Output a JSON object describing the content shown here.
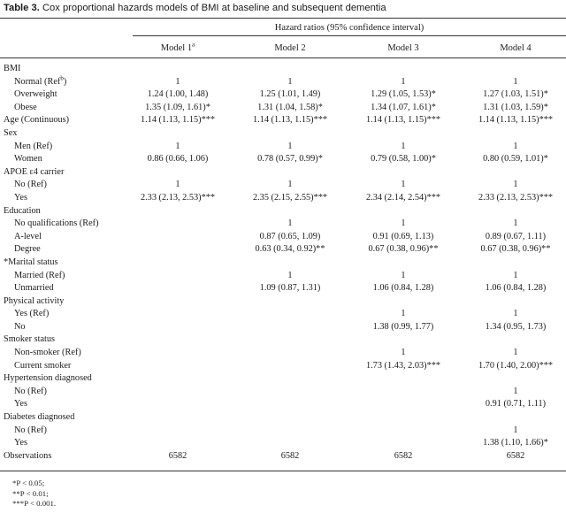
{
  "caption": {
    "number": "Table 3.",
    "text": "Cox proportional hazards models of BMI at baseline and subsequent dementia"
  },
  "group_header": "Hazard ratios (95% confidence interval)",
  "models": [
    {
      "label": "Model 1",
      "sup": "a"
    },
    {
      "label": "Model 2",
      "sup": ""
    },
    {
      "label": "Model 3",
      "sup": ""
    },
    {
      "label": "Model 4",
      "sup": ""
    }
  ],
  "rows": [
    {
      "label": "BMI",
      "sub": false,
      "cells": [
        "",
        "",
        "",
        ""
      ]
    },
    {
      "label": "Normal (Ref",
      "label_sup": "b",
      "label_tail": ")",
      "sub": true,
      "cells": [
        "1",
        "1",
        "1",
        "1"
      ]
    },
    {
      "label": "Overweight",
      "sub": true,
      "cells": [
        "1.24 (1.00, 1.48)",
        "1.25 (1.01, 1.49)",
        "1.29 (1.05, 1.53)*",
        "1.27 (1.03, 1.51)*"
      ]
    },
    {
      "label": "Obese",
      "sub": true,
      "cells": [
        "1.35 (1.09, 1.61)*",
        "1.31 (1.04, 1.58)*",
        "1.34 (1.07, 1.61)*",
        "1.31 (1.03, 1.59)*"
      ]
    },
    {
      "label": "Age (Continuous)",
      "sub": false,
      "cells": [
        "1.14 (1.13, 1.15)***",
        "1.14 (1.13, 1.15)***",
        "1.14 (1.13, 1.15)***",
        "1.14 (1.13, 1.15)***"
      ]
    },
    {
      "label": "Sex",
      "sub": false,
      "cells": [
        "",
        "",
        "",
        ""
      ]
    },
    {
      "label": "Men (Ref)",
      "sub": true,
      "cells": [
        "1",
        "1",
        "1",
        "1"
      ]
    },
    {
      "label": "Women",
      "sub": true,
      "cells": [
        "0.86 (0.66, 1.06)",
        "0.78 (0.57, 0.99)*",
        "0.79 (0.58, 1.00)*",
        "0.80 (0.59, 1.01)*"
      ]
    },
    {
      "label": "APOE ε4 carrier",
      "sub": false,
      "cells": [
        "",
        "",
        "",
        ""
      ]
    },
    {
      "label": "No (Ref)",
      "sub": true,
      "cells": [
        "1",
        "1",
        "1",
        "1"
      ]
    },
    {
      "label": "Yes",
      "sub": true,
      "cells": [
        "2.33 (2.13, 2.53)***",
        "2.35 (2.15, 2.55)***",
        "2.34 (2.14, 2.54)***",
        "2.33 (2.13, 2.53)***"
      ]
    },
    {
      "label": "Education",
      "sub": false,
      "cells": [
        "",
        "",
        "",
        ""
      ]
    },
    {
      "label": "No qualifications (Ref)",
      "sub": true,
      "cells": [
        "",
        "1",
        "1",
        "1"
      ]
    },
    {
      "label": "A-level",
      "sub": true,
      "cells": [
        "",
        "0.87 (0.65, 1.09)",
        "0.91 (0.69, 1.13)",
        "0.89 (0.67, 1.11)"
      ]
    },
    {
      "label": "Degree",
      "sub": true,
      "cells": [
        "",
        "0.63 (0.34, 0.92)**",
        "0.67 (0.38, 0.96)**",
        "0.67 (0.38, 0.96)**"
      ]
    },
    {
      "label": "*Marital status",
      "sub": false,
      "cells": [
        "",
        "",
        "",
        ""
      ]
    },
    {
      "label": "Married (Ref)",
      "sub": true,
      "cells": [
        "",
        "1",
        "1",
        "1"
      ]
    },
    {
      "label": "Unmarried",
      "sub": true,
      "cells": [
        "",
        "1.09 (0.87, 1.31)",
        "1.06 (0.84, 1.28)",
        "1.06 (0.84, 1.28)"
      ]
    },
    {
      "label": "Physical activity",
      "sub": false,
      "cells": [
        "",
        "",
        "",
        ""
      ]
    },
    {
      "label": "Yes (Ref)",
      "sub": true,
      "cells": [
        "",
        "",
        "1",
        "1"
      ]
    },
    {
      "label": "No",
      "sub": true,
      "cells": [
        "",
        "",
        "1.38 (0.99, 1.77)",
        "1.34 (0.95, 1.73)"
      ]
    },
    {
      "label": "Smoker status",
      "sub": false,
      "cells": [
        "",
        "",
        "",
        ""
      ]
    },
    {
      "label": "Non-smoker (Ref)",
      "sub": true,
      "cells": [
        "",
        "",
        "1",
        "1"
      ]
    },
    {
      "label": "Current smoker",
      "sub": true,
      "cells": [
        "",
        "",
        "1.73 (1.43, 2.03)***",
        "1.70 (1.40, 2.00)***"
      ]
    },
    {
      "label": "Hypertension diagnosed",
      "sub": false,
      "cells": [
        "",
        "",
        "",
        ""
      ]
    },
    {
      "label": "No (Ref)",
      "sub": true,
      "cells": [
        "",
        "",
        "",
        "1"
      ]
    },
    {
      "label": "Yes",
      "sub": true,
      "cells": [
        "",
        "",
        "",
        "0.91 (0.71, 1.11)"
      ]
    },
    {
      "label": "Diabetes diagnosed",
      "sub": false,
      "cells": [
        "",
        "",
        "",
        ""
      ]
    },
    {
      "label": "No (Ref)",
      "sub": true,
      "cells": [
        "",
        "",
        "",
        "1"
      ]
    },
    {
      "label": "Yes",
      "sub": true,
      "cells": [
        "",
        "",
        "",
        "1.38 (1.10, 1.66)*"
      ]
    },
    {
      "label": "Observations",
      "sub": false,
      "cells": [
        "6582",
        "6582",
        "6582",
        "6582"
      ]
    }
  ],
  "footnotes": [
    "*P < 0.05;",
    "**P < 0.01;",
    "***P < 0.001."
  ]
}
